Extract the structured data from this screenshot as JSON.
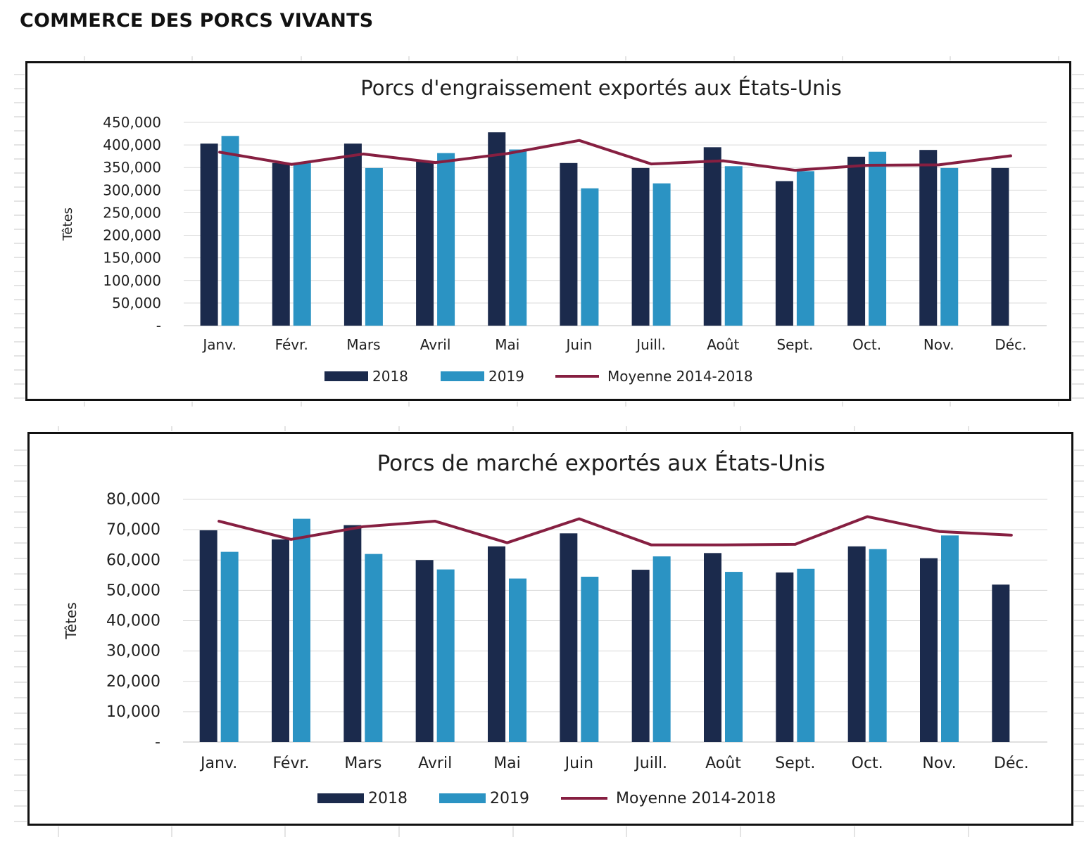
{
  "page": {
    "heading": "COMMERCE DES PORCS VIVANTS"
  },
  "colors": {
    "series_2018": "#1b2a4c",
    "series_2019": "#2b93c3",
    "average_line": "#861f41",
    "gridline": "#d9d9d9",
    "text": "#1f1f1f"
  },
  "chart_data": [
    {
      "type": "bar",
      "title": "Porcs d'engraissement exportés aux États-Unis",
      "xlabel": "",
      "ylabel": "Têtes",
      "categories": [
        "Janv.",
        "Févr.",
        "Mars",
        "Avril",
        "Mai",
        "Juin",
        "Juill.",
        "Août",
        "Sept.",
        "Oct.",
        "Nov.",
        "Déc."
      ],
      "ylim": [
        0,
        450000
      ],
      "yticks": [
        0,
        50000,
        100000,
        150000,
        200000,
        250000,
        300000,
        350000,
        400000,
        450000
      ],
      "ytick_labels": [
        "-",
        "50,000",
        "100,000",
        "150,000",
        "200,000",
        "250,000",
        "300,000",
        "350,000",
        "400,000",
        "450,000"
      ],
      "grid": true,
      "legend_position": "bottom",
      "series": [
        {
          "name": "2018",
          "kind": "bar",
          "values": [
            403000,
            360000,
            403000,
            363000,
            428000,
            360000,
            349000,
            395000,
            320000,
            374000,
            389000,
            349000
          ]
        },
        {
          "name": "2019",
          "kind": "bar",
          "values": [
            420000,
            360000,
            349000,
            382000,
            390000,
            304000,
            315000,
            353000,
            342000,
            385000,
            349000,
            null
          ]
        },
        {
          "name": "Moyenne 2014-2018",
          "kind": "line",
          "values": [
            384000,
            357000,
            380000,
            361000,
            381000,
            410000,
            358000,
            365000,
            344000,
            355000,
            356000,
            376000
          ]
        }
      ]
    },
    {
      "type": "bar",
      "title": "Porcs de marché exportés aux États-Unis",
      "xlabel": "",
      "ylabel": "Têtes",
      "categories": [
        "Janv.",
        "Févr.",
        "Mars",
        "Avril",
        "Mai",
        "Juin",
        "Juill.",
        "Août",
        "Sept.",
        "Oct.",
        "Nov.",
        "Déc."
      ],
      "ylim": [
        0,
        80000
      ],
      "yticks": [
        0,
        10000,
        20000,
        30000,
        40000,
        50000,
        60000,
        70000,
        80000
      ],
      "ytick_labels": [
        "-",
        "10,000",
        "20,000",
        "30,000",
        "40,000",
        "50,000",
        "60,000",
        "70,000",
        "80,000"
      ],
      "grid": true,
      "legend_position": "bottom",
      "series": [
        {
          "name": "2018",
          "kind": "bar",
          "values": [
            69800,
            66800,
            71500,
            60000,
            64500,
            68800,
            56800,
            62300,
            55900,
            64500,
            60600,
            51900
          ]
        },
        {
          "name": "2019",
          "kind": "bar",
          "values": [
            62700,
            73600,
            62000,
            56900,
            53900,
            54500,
            61200,
            56100,
            57100,
            63600,
            68100,
            null
          ]
        },
        {
          "name": "Moyenne 2014-2018",
          "kind": "line",
          "values": [
            72800,
            66800,
            71000,
            72800,
            65700,
            73600,
            65000,
            65000,
            65200,
            74300,
            69400,
            68200
          ]
        }
      ]
    }
  ]
}
